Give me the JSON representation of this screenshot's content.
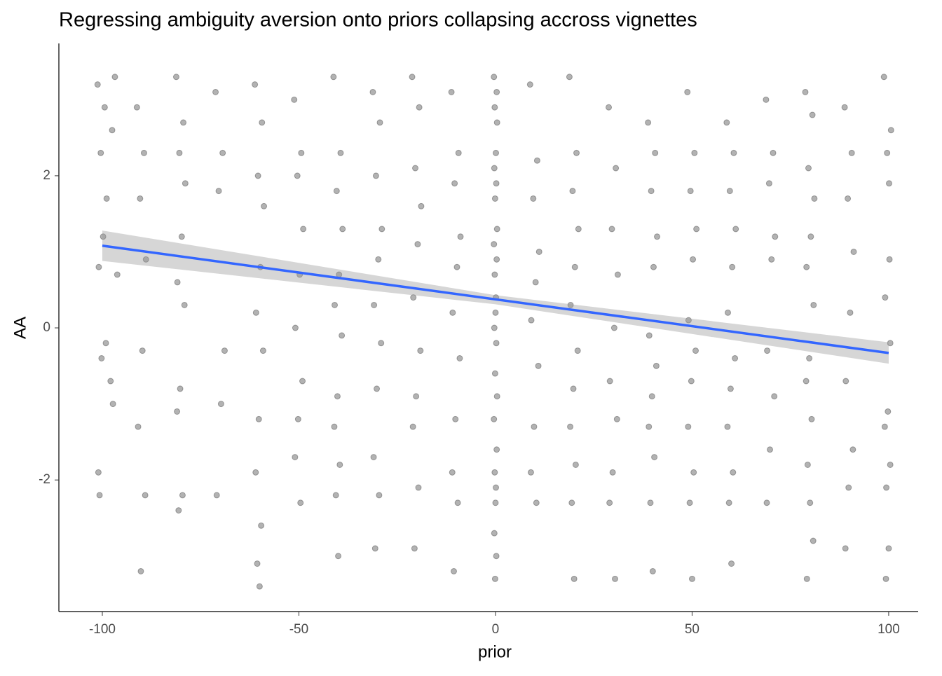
{
  "chart_data": {
    "type": "scatter",
    "title": "Regressing ambiguity aversion onto priors collapsing accross vignettes",
    "x_label": "prior",
    "y_label": "AA",
    "xlim": [
      -111.05,
      107.5
    ],
    "ylim": [
      -3.73,
      3.74
    ],
    "xticks": [
      -100,
      -50,
      0,
      50,
      100
    ],
    "yticks": [
      -2,
      0,
      2
    ],
    "point_color": "#000000",
    "point_opacity": 0.3,
    "grid": false,
    "x": [
      -101.2,
      -99.4,
      -100.4,
      -98.9,
      -99.8,
      -100.9,
      -99.1,
      -100.2,
      -101.0,
      -100.7,
      -96.8,
      -97.5,
      -96.2,
      -97.9,
      -97.3,
      -91.2,
      -89.4,
      -90.4,
      -88.9,
      -89.8,
      -90.9,
      -89.1,
      -90.2,
      -81.2,
      -79.4,
      -80.4,
      -78.9,
      -79.8,
      -80.9,
      -79.1,
      -80.2,
      -81.0,
      -79.6,
      -80.6,
      -71.2,
      -69.4,
      -70.4,
      -68.9,
      -69.8,
      -70.9,
      -61.2,
      -59.4,
      -60.4,
      -58.9,
      -59.8,
      -60.9,
      -59.1,
      -60.2,
      -61.0,
      -59.6,
      -60.6,
      -60.0,
      -51.2,
      -49.4,
      -50.4,
      -48.9,
      -49.8,
      -50.9,
      -49.1,
      -50.2,
      -51.0,
      -49.6,
      -41.2,
      -39.4,
      -40.4,
      -38.9,
      -39.8,
      -40.9,
      -39.1,
      -40.2,
      -41.0,
      -39.6,
      -40.6,
      -40.0,
      -31.2,
      -29.4,
      -30.4,
      -28.9,
      -29.8,
      -30.9,
      -29.1,
      -30.2,
      -31.0,
      -29.6,
      -30.6,
      -21.2,
      -19.4,
      -20.4,
      -18.9,
      -19.8,
      -20.9,
      -19.1,
      -20.2,
      -21.0,
      -19.6,
      -20.6,
      -11.2,
      -9.4,
      -10.4,
      -8.9,
      -9.8,
      -10.9,
      -9.1,
      -10.2,
      -11.0,
      -9.6,
      -10.6,
      -0.4,
      0.3,
      -0.2,
      0.4,
      0.1,
      -0.3,
      0.2,
      -0.1,
      0.4,
      -0.4,
      0.3,
      -0.2,
      0.1,
      0.0,
      -0.3,
      0.2,
      -0.1,
      0.4,
      -0.4,
      0.3,
      -0.2,
      0.1,
      0.0,
      -0.3,
      0.2,
      -0.1,
      8.8,
      10.6,
      9.6,
      11.1,
      10.2,
      9.1,
      10.9,
      9.8,
      9.0,
      10.4,
      18.8,
      20.6,
      19.6,
      21.1,
      20.2,
      19.1,
      20.9,
      19.8,
      19.0,
      20.4,
      19.4,
      20.0,
      28.8,
      30.6,
      29.6,
      31.1,
      30.2,
      29.1,
      30.9,
      29.8,
      29.0,
      30.4,
      38.8,
      40.6,
      39.6,
      41.1,
      40.2,
      39.1,
      40.9,
      39.8,
      39.0,
      40.4,
      39.4,
      40.0,
      48.8,
      50.6,
      49.6,
      51.1,
      50.2,
      49.1,
      50.9,
      49.8,
      49.0,
      50.4,
      49.4,
      50.0,
      58.8,
      60.6,
      59.6,
      61.1,
      60.2,
      59.1,
      60.9,
      59.8,
      59.0,
      60.4,
      59.4,
      60.0,
      68.8,
      70.6,
      69.6,
      71.1,
      70.2,
      69.1,
      70.9,
      69.8,
      69.0,
      78.8,
      80.6,
      79.6,
      81.1,
      80.2,
      79.1,
      80.9,
      79.8,
      79.0,
      80.4,
      79.4,
      80.0,
      80.8,
      79.2,
      88.8,
      90.6,
      89.6,
      91.1,
      90.2,
      89.1,
      90.9,
      89.8,
      89.0,
      98.8,
      100.6,
      99.6,
      100.1,
      100.2,
      99.1,
      100.4,
      99.8,
      99.0,
      100.4,
      99.4,
      100.0,
      99.3
    ],
    "values": [
      3.2,
      2.9,
      2.3,
      1.7,
      1.2,
      0.8,
      -0.2,
      -0.4,
      -1.9,
      -2.2,
      3.3,
      2.6,
      0.7,
      -0.7,
      -1.0,
      2.9,
      2.3,
      1.7,
      0.9,
      -0.3,
      -1.3,
      -2.2,
      -3.2,
      3.3,
      2.7,
      2.3,
      1.9,
      1.2,
      0.6,
      0.3,
      -0.8,
      -1.1,
      -2.2,
      -2.4,
      3.1,
      2.3,
      1.8,
      -0.3,
      -1.0,
      -2.2,
      3.2,
      2.7,
      2.0,
      1.6,
      0.8,
      0.2,
      -0.3,
      -1.2,
      -1.9,
      -2.6,
      -3.1,
      -3.4,
      3.0,
      2.3,
      2.0,
      1.3,
      0.7,
      0.0,
      -0.7,
      -1.2,
      -1.7,
      -2.3,
      3.3,
      2.3,
      1.8,
      1.3,
      0.7,
      0.3,
      -0.1,
      -0.9,
      -1.3,
      -1.8,
      -2.2,
      -3.0,
      3.1,
      2.7,
      2.0,
      1.3,
      0.9,
      0.3,
      -0.2,
      -0.8,
      -1.7,
      -2.2,
      -2.9,
      3.3,
      2.9,
      2.1,
      1.6,
      1.1,
      0.4,
      -0.3,
      -0.9,
      -1.3,
      -2.1,
      -2.9,
      3.1,
      2.3,
      1.9,
      1.2,
      0.8,
      0.2,
      -0.4,
      -1.2,
      -1.9,
      -2.3,
      -3.2,
      3.3,
      3.1,
      2.9,
      2.7,
      2.3,
      2.1,
      1.9,
      1.7,
      1.3,
      1.1,
      0.9,
      0.7,
      0.4,
      0.2,
      0.0,
      -0.2,
      -0.6,
      -0.9,
      -1.2,
      -1.6,
      -1.9,
      -2.1,
      -2.3,
      -2.7,
      -3.0,
      -3.3,
      3.2,
      2.2,
      1.7,
      1.0,
      0.6,
      0.1,
      -0.5,
      -1.3,
      -1.9,
      -2.3,
      3.3,
      2.3,
      1.8,
      1.3,
      0.8,
      0.3,
      -0.3,
      -0.8,
      -1.3,
      -1.8,
      -2.3,
      -3.3,
      2.9,
      2.1,
      1.3,
      0.7,
      0.0,
      -0.7,
      -1.2,
      -1.9,
      -2.3,
      -3.3,
      2.7,
      2.3,
      1.8,
      1.2,
      0.8,
      -0.1,
      -0.5,
      -0.9,
      -1.3,
      -1.7,
      -2.3,
      -3.2,
      3.1,
      2.3,
      1.8,
      1.3,
      0.9,
      0.1,
      -0.3,
      -0.7,
      -1.3,
      -1.9,
      -2.3,
      -3.3,
      2.7,
      2.3,
      1.8,
      1.3,
      0.8,
      0.2,
      -0.4,
      -0.8,
      -1.3,
      -1.9,
      -2.3,
      -3.1,
      3.0,
      2.3,
      1.9,
      1.2,
      0.9,
      -0.3,
      -0.9,
      -1.6,
      -2.3,
      3.1,
      2.8,
      2.1,
      1.7,
      1.2,
      0.8,
      0.3,
      -0.4,
      -0.7,
      -1.2,
      -1.8,
      -2.3,
      -2.8,
      -3.3,
      2.9,
      2.3,
      1.7,
      1.0,
      0.2,
      -0.7,
      -1.6,
      -2.1,
      -2.9,
      3.3,
      2.6,
      2.3,
      1.9,
      0.9,
      0.4,
      -0.2,
      -1.1,
      -1.3,
      -1.8,
      -2.1,
      -2.9,
      -3.3
    ],
    "fit": {
      "color": "#3366ff",
      "x": [
        -100,
        100
      ],
      "values": [
        1.08,
        -0.33
      ]
    },
    "band": {
      "color": "#999999",
      "x": [
        -100,
        0,
        100
      ],
      "upper": [
        1.28,
        0.43,
        -0.19
      ],
      "lower": [
        0.88,
        0.31,
        -0.47
      ]
    }
  }
}
